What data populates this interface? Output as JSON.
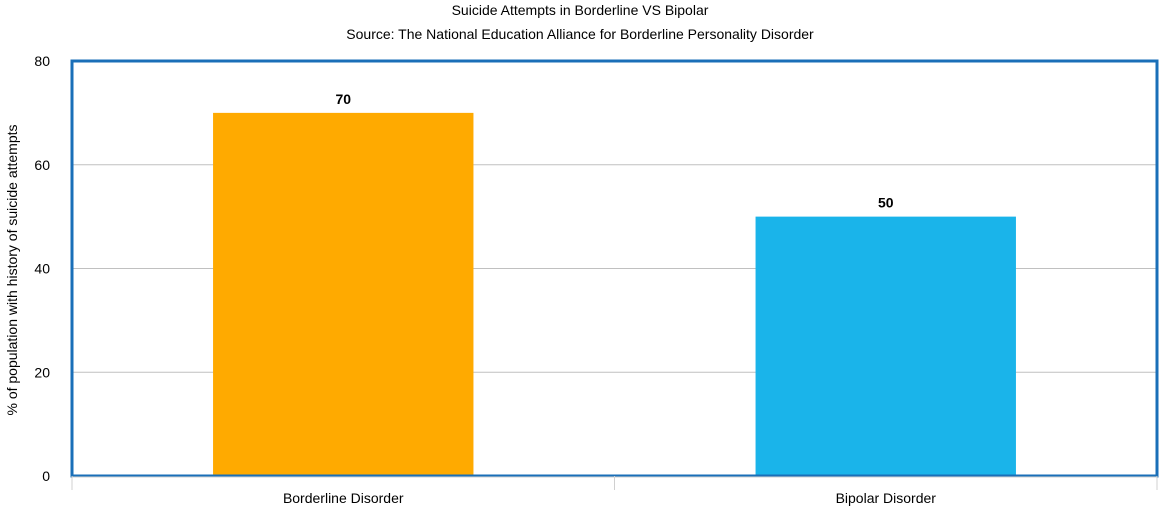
{
  "chart_data": {
    "type": "bar",
    "title": "Suicide Attempts in Borderline VS Bipolar",
    "subtitle": "Source: The National Education Alliance for Borderline Personality Disorder",
    "xlabel": "",
    "ylabel": "% of population with history of suicide attempts",
    "categories": [
      "Borderline Disorder",
      "Bipolar Disorder"
    ],
    "values": [
      70,
      50
    ],
    "data_labels": [
      "70",
      "50"
    ],
    "colors": [
      "#ffaa00",
      "#1ab4ea"
    ],
    "ylim": [
      0,
      80
    ],
    "yticks": [
      0,
      20,
      40,
      60,
      80
    ],
    "ytick_labels": [
      "0",
      "20",
      "40",
      "60",
      "80"
    ],
    "grid": true,
    "legend": "none",
    "plot_border_color": "#1a6fb8",
    "gridline_color": "#c0c0c0"
  }
}
